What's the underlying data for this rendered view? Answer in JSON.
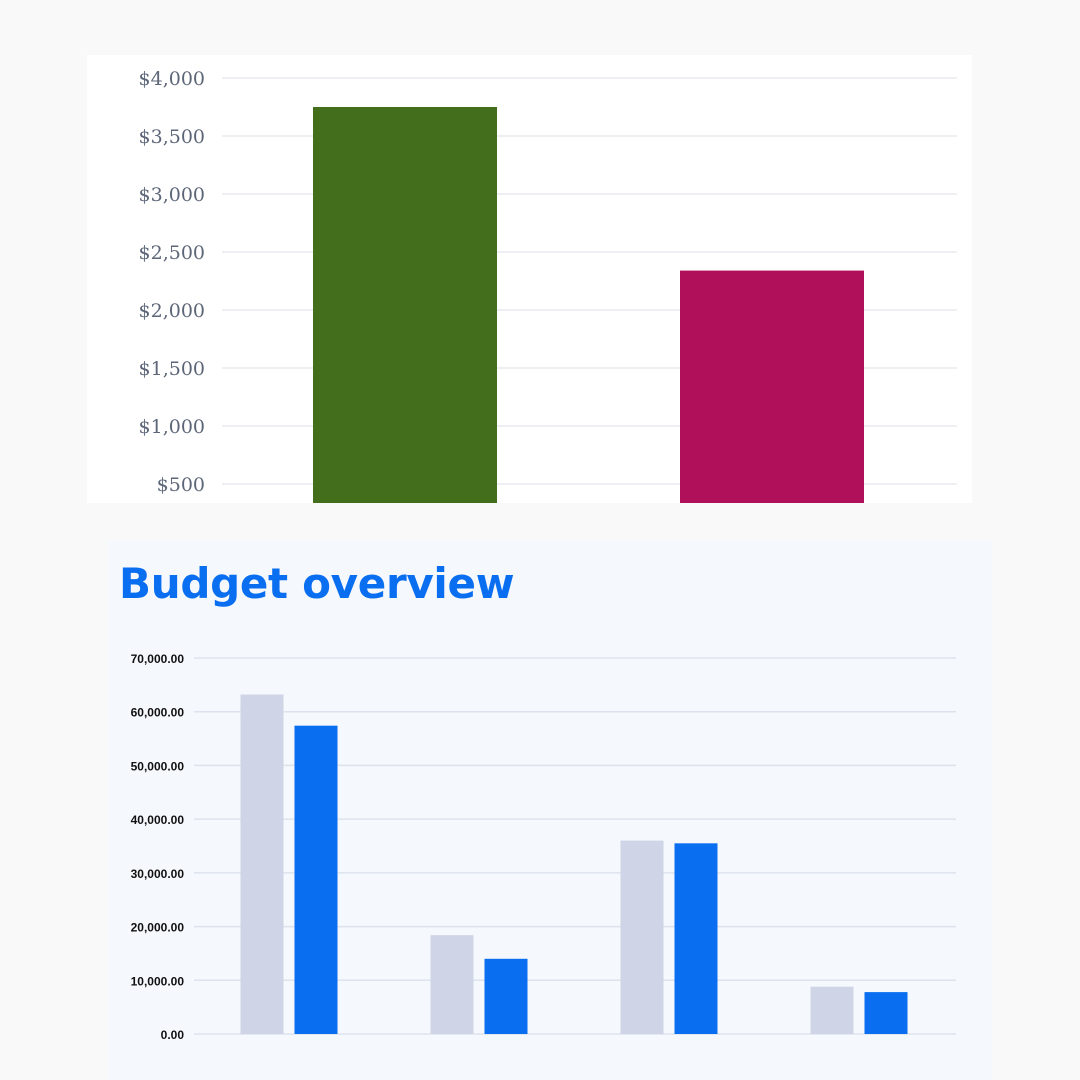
{
  "chart_data": [
    {
      "type": "bar",
      "title": "",
      "xlabel": "",
      "ylabel": "",
      "categories": [
        "",
        ""
      ],
      "values": [
        3750,
        2340
      ],
      "bar_colors": [
        "#436f1c",
        "#b0105a"
      ],
      "ylim": [
        400,
        4000
      ],
      "yticks": [
        500,
        1000,
        1500,
        2000,
        2500,
        3000,
        3500,
        4000
      ],
      "ytick_labels": [
        "$500",
        "$1,000",
        "$1,500",
        "$2,000",
        "$2,500",
        "$3,000",
        "$3,500",
        "$4,000"
      ],
      "grid": true,
      "legend": "none"
    },
    {
      "type": "bar",
      "title": "Budget overview",
      "xlabel": "",
      "ylabel": "",
      "categories": [
        "",
        "",
        "",
        ""
      ],
      "series": [
        {
          "values": [
            63200,
            18400,
            36000,
            8800
          ],
          "color": "#cfd4e6"
        },
        {
          "values": [
            57400,
            14000,
            35500,
            7800
          ],
          "color": "#0a6ef0"
        }
      ],
      "ylim": [
        0,
        70000
      ],
      "yticks": [
        0,
        10000,
        20000,
        30000,
        40000,
        50000,
        60000,
        70000
      ],
      "ytick_labels": [
        "0.00",
        "10,000.00",
        "20,000.00",
        "30,000.00",
        "40,000.00",
        "50,000.00",
        "60,000.00",
        "70,000.00"
      ],
      "grid": true,
      "legend": "none"
    }
  ]
}
